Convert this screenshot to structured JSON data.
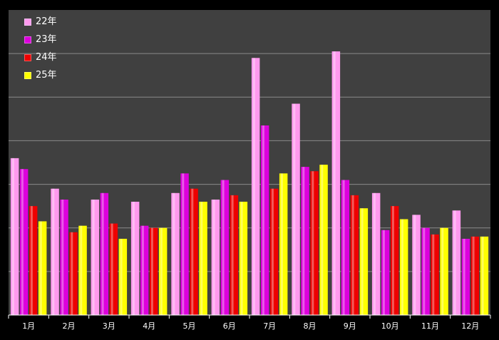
{
  "chart_data": {
    "type": "bar",
    "title": "",
    "xlabel": "",
    "ylabel": "",
    "grid": true,
    "legend_position": "top-left",
    "categories": [
      "1月",
      "2月",
      "3月",
      "4月",
      "5月",
      "6月",
      "7月",
      "8月",
      "9月",
      "10月",
      "11月",
      "12月"
    ],
    "ylim": [
      0,
      140
    ],
    "series": [
      {
        "name": "22年",
        "color": "#ff99ee",
        "values": [
          72,
          58,
          53,
          52,
          56,
          53,
          118,
          97,
          121,
          56,
          46,
          48
        ]
      },
      {
        "name": "23年",
        "color": "#dd00dd",
        "values": [
          67,
          53,
          56,
          41,
          65,
          62,
          87,
          68,
          62,
          39,
          40,
          35
        ]
      },
      {
        "name": "24年",
        "color": "#ee0000",
        "values": [
          50,
          38,
          42,
          40,
          58,
          55,
          58,
          66,
          55,
          50,
          37,
          36
        ]
      },
      {
        "name": "25年",
        "color": "#ffff00",
        "values": [
          43,
          41,
          35,
          40,
          52,
          52,
          65,
          69,
          49,
          44,
          40,
          36
        ]
      }
    ]
  }
}
